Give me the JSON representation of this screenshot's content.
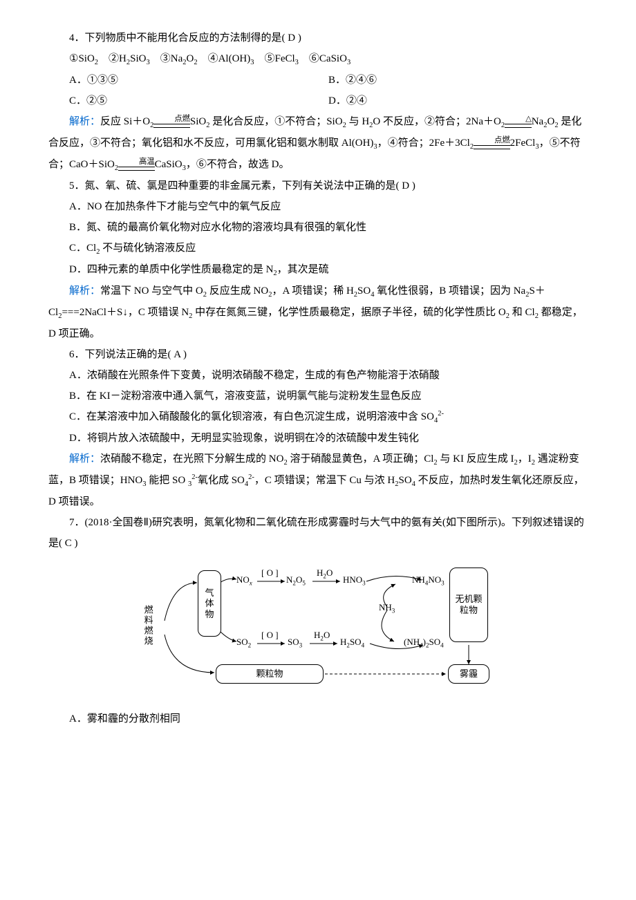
{
  "q4": {
    "stem_prefix": "4．下列物质中不能用化合反应的方法制得的是(",
    "answer_letter": "D",
    "stem_suffix": ")",
    "items_line": "①SiO<sub>2</sub>　②H<sub>2</sub>SiO<sub>3</sub>　③Na<sub>2</sub>O<sub>2</sub>　④Al(OH)<sub>3</sub>　⑤FeCl<sub>3</sub>　⑥CaSiO<sub>3</sub>",
    "optA": "A．①③⑤",
    "optB": "B．②④⑥",
    "optC": "C．②⑤",
    "optD": "D．②④",
    "analysis_label": "解析：",
    "analysis_html": "反应 Si＋O<sub>2</sub><span class=\"arrow\"><span class=\"cond\">点燃</span><span class=\"lineeq\"></span></span>SiO<sub>2</sub> 是化合反应，①不符合；SiO<sub>2</sub> 与 H<sub>2</sub>O 不反应，②符合；2Na＋O<sub>2</sub><span class=\"arrow\"><span class=\"cond\">△</span><span class=\"lineeq\"></span></span>Na<sub>2</sub>O<sub>2</sub> 是化合反应，③不符合；氧化铝和水不反应，可用氯化铝和氨水制取 Al(OH)<sub>3</sub>，④符合；2Fe＋3Cl<sub>2</sub><span class=\"arrow\"><span class=\"cond\">点燃</span><span class=\"lineeq\"></span></span>2FeCl<sub>3</sub>，⑤不符合；CaO＋SiO<sub>2</sub><span class=\"arrow\"><span class=\"cond\">高温</span><span class=\"lineeq\"></span></span>CaSiO<sub>3</sub>，⑥不符合，故选 D。"
  },
  "q5": {
    "stem_prefix": "5．氮、氧、硫、氯是四种重要的非金属元素，下列有关说法中正确的是(",
    "answer_letter": "D",
    "stem_suffix": ")",
    "optA": "A．NO 在加热条件下才能与空气中的氧气反应",
    "optB_html": "B．氮、硫的最高价氧化物对应水化物的溶液均具有很强的氧化性",
    "optC_html": "C．Cl<sub>2</sub> 不与硫化钠溶液反应",
    "optD_html": "D．四种元素的单质中化学性质最稳定的是 N<sub>2</sub>，其次是硫",
    "analysis_label": "解析：",
    "analysis_html": "常温下 NO 与空气中 O<sub>2</sub> 反应生成 NO<sub>2</sub>，A 项错误；稀 H<sub>2</sub>SO<sub>4</sub> 氧化性很弱，B 项错误；因为 Na<sub>2</sub>S＋Cl<sub>2</sub>===2NaCl＋S↓，C 项错误 N<sub>2</sub> 中存在氮氮三键，化学性质最稳定，据原子半径，硫的化学性质比 O<sub>2</sub> 和 Cl<sub>2</sub> 都稳定，D 项正确。"
  },
  "q6": {
    "stem_prefix": "6．下列说法正确的是(",
    "answer_letter": "A",
    "stem_suffix": ")",
    "optA": "A．浓硝酸在光照条件下变黄，说明浓硝酸不稳定，生成的有色产物能溶于浓硝酸",
    "optB": "B．在 KI－淀粉溶液中通入氯气，溶液变蓝，说明氯气能与淀粉发生显色反应",
    "optC_html": "C．在某溶液中加入硝酸酸化的氯化钡溶液，有白色沉淀生成，说明溶液中含 SO<sub>4</sub><sup>2-</sup>",
    "optD": "D．将铜片放入浓硫酸中，无明显实验现象，说明铜在冷的浓硫酸中发生钝化",
    "analysis_label": "解析：",
    "analysis_html": "浓硝酸不稳定，在光照下分解生成的 NO<sub>2</sub> 溶于硝酸显黄色，A 项正确；Cl<sub>2</sub> 与 KI 反应生成 I<sub>2</sub>，I<sub>2</sub> 遇淀粉变蓝，B 项错误；HNO<sub>3</sub> 能把 SO <sub>3</sub><sup>2-</sup>氧化成 SO<sub>4</sub><sup>2-</sup>，C 项错误；常温下 Cu 与浓 H<sub>2</sub>SO<sub>4</sub> 不反应，加热时发生氧化还原反应，D 项错误。"
  },
  "q7": {
    "stem_prefix": "7．(2018·全国卷Ⅱ)研究表明，氮氧化物和二氧化硫在形成雾霾时与大气中的氨有关(如下图所示)。下列叙述错误的是(",
    "answer_letter": "C",
    "stem_suffix": ")",
    "optA": "A．雾和霾的分散剂相同"
  },
  "diagram": {
    "fuel_label": "燃料燃烧",
    "gas_box": "气体物",
    "particulate_box": "颗粒物",
    "inorganic_box": "无机颗粒物",
    "haze_box": "雾霾",
    "nox": "NO<sub><i>x</i></sub>",
    "n2o5": "N<sub>2</sub>O<sub>5</sub>",
    "hno3": "HNO<sub>3</sub>",
    "nh4no3": "NH<sub>4</sub>NO<sub>3</sub>",
    "so2": "SO<sub>2</sub>",
    "so3": "SO<sub>3</sub>",
    "h2so4": "H<sub>2</sub>SO<sub>4</sub>",
    "nh42so4": "(NH<sub>4</sub>)<sub>2</sub>SO<sub>4</sub>",
    "nh3": "NH<sub>3</sub>",
    "o_cond": "[ O ]",
    "h2o_cond": "H<sub>2</sub>O",
    "colors": {
      "line": "#000",
      "bg": "#fff"
    }
  }
}
